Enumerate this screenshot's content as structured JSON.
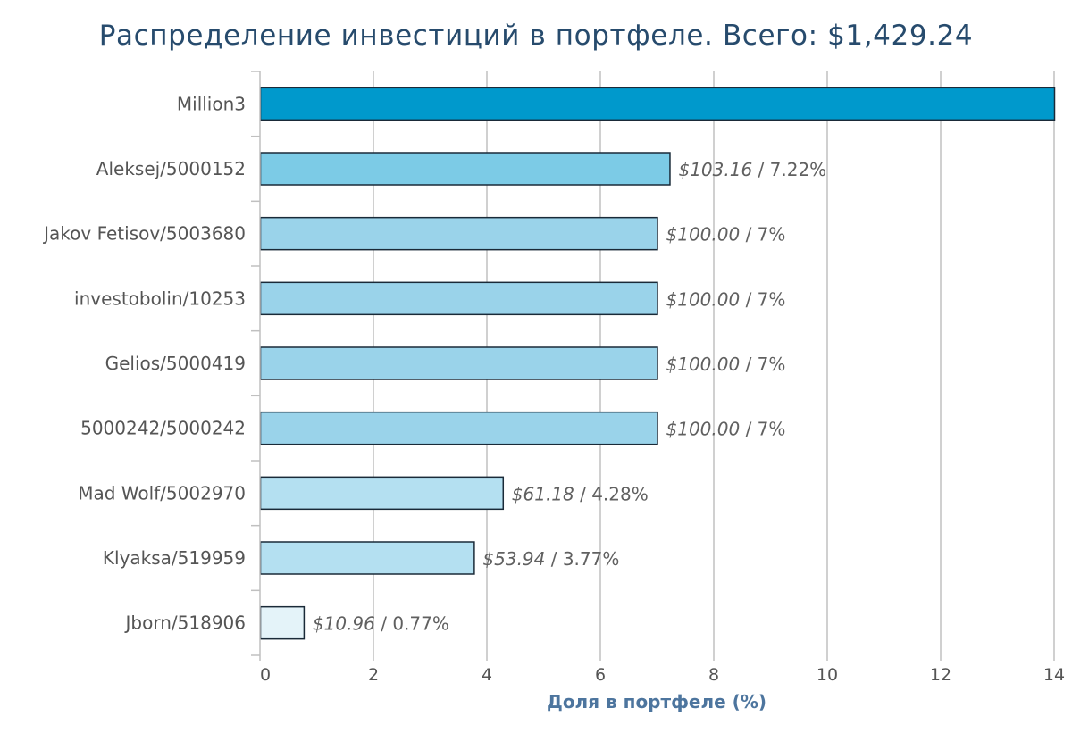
{
  "chart_data": {
    "type": "bar",
    "orientation": "horizontal",
    "title": "Распределение инвестиций в портфеле. Всего: $1,429.24",
    "xlabel": "Доля в портфеле (%)",
    "ylabel": "",
    "xlim": [
      0,
      14
    ],
    "xticks": [
      "0",
      "2",
      "4",
      "6",
      "8",
      "10",
      "12",
      "14"
    ],
    "grid": true,
    "legend": "none",
    "categories": [
      "Million3",
      "Aleksej/5000152",
      "Jakov Fetisov/5003680",
      "investobolin/10253",
      "Gelios/5000419",
      "5000242/5000242",
      "Mad Wolf/5002970",
      "Klyaksa/519959",
      "Jborn/518906"
    ],
    "values": [
      14.5,
      7.22,
      7,
      7,
      7,
      7,
      4.28,
      3.77,
      0.77
    ],
    "value_labels": [
      null,
      "$103.16",
      "$100.00",
      "$100.00",
      "$100.00",
      "$100.00",
      "$61.18",
      "$53.94",
      "$10.96"
    ],
    "percent_labels": [
      null,
      "7.22%",
      "7%",
      "7%",
      "7%",
      "7%",
      "4.28%",
      "3.77%",
      "0.77%"
    ],
    "label_separator": " / ",
    "colors": [
      "#0099cc",
      "#7ccbe6",
      "#9ad3ea",
      "#9ad3ea",
      "#9ad3ea",
      "#9ad3ea",
      "#b4e0f1",
      "#b4e0f1",
      "#e4f3f9"
    ],
    "gridline_color": "#c0c0c0",
    "bar_border_color": "#1a2a38"
  }
}
